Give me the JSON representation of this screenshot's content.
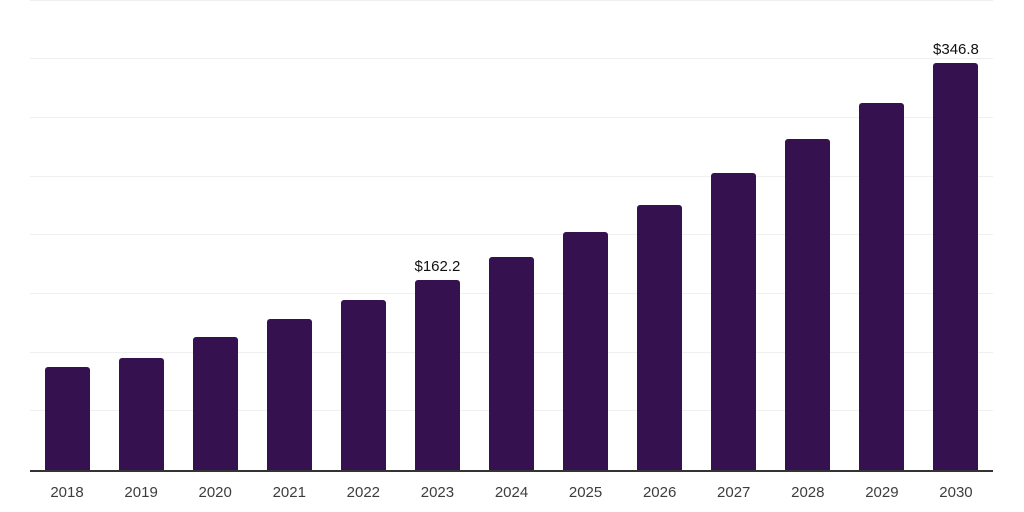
{
  "chart_data": {
    "type": "bar",
    "title": "",
    "xlabel": "",
    "ylabel": "",
    "categories": [
      "2018",
      "2019",
      "2020",
      "2021",
      "2022",
      "2023",
      "2024",
      "2025",
      "2026",
      "2027",
      "2028",
      "2029",
      "2030"
    ],
    "values": [
      88.0,
      95.3,
      113.5,
      128.5,
      145.0,
      162.2,
      181.3,
      202.7,
      226.0,
      252.9,
      281.9,
      313.0,
      346.8
    ],
    "value_labels": [
      {
        "index": 5,
        "text": "$162.2"
      },
      {
        "index": 12,
        "text": "$346.8"
      }
    ],
    "ylim": [
      0,
      400
    ],
    "gridline_step": 50,
    "grid": true,
    "legend": "none",
    "y_axis_labels_visible": false,
    "colors": {
      "bar": "#351150",
      "axis_line": "#333333",
      "gridline": "#f0f0f3",
      "x_tick_label": "#3d3d3d",
      "value_label": "#111111",
      "background": "#ffffff"
    }
  }
}
